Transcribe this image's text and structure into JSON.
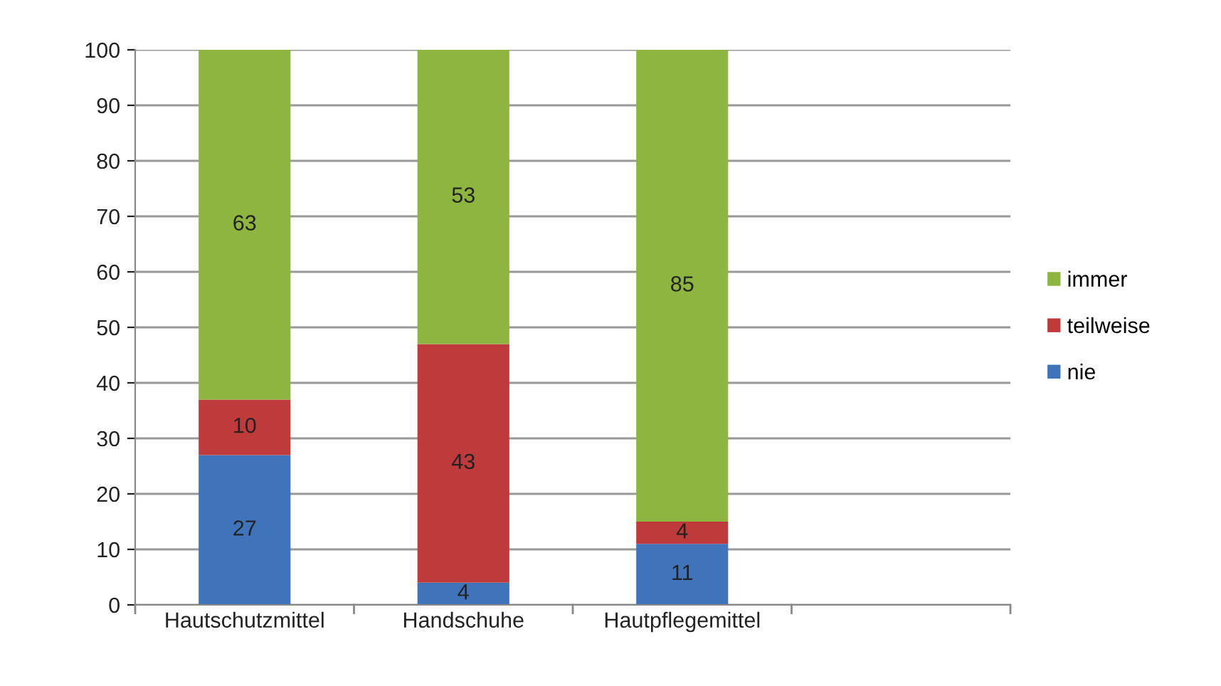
{
  "chart_data": {
    "type": "bar",
    "stacked": true,
    "categories": [
      "Hautschutzmittel",
      "Handschuhe",
      "Hautpflegemittel",
      null
    ],
    "series": [
      {
        "name": "nie",
        "color": "#3f74bb",
        "values": [
          27,
          4,
          11,
          null
        ]
      },
      {
        "name": "teilweise",
        "color": "#bf3a3a",
        "values": [
          10,
          43,
          4,
          null
        ]
      },
      {
        "name": "immer",
        "color": "#8db53f",
        "values": [
          63,
          53,
          85,
          null
        ]
      }
    ],
    "ylim": [
      0,
      100
    ],
    "yticks": [
      0,
      10,
      20,
      30,
      40,
      50,
      60,
      70,
      80,
      90,
      100
    ],
    "grid": "y",
    "legend": "right",
    "data_labels": true
  }
}
